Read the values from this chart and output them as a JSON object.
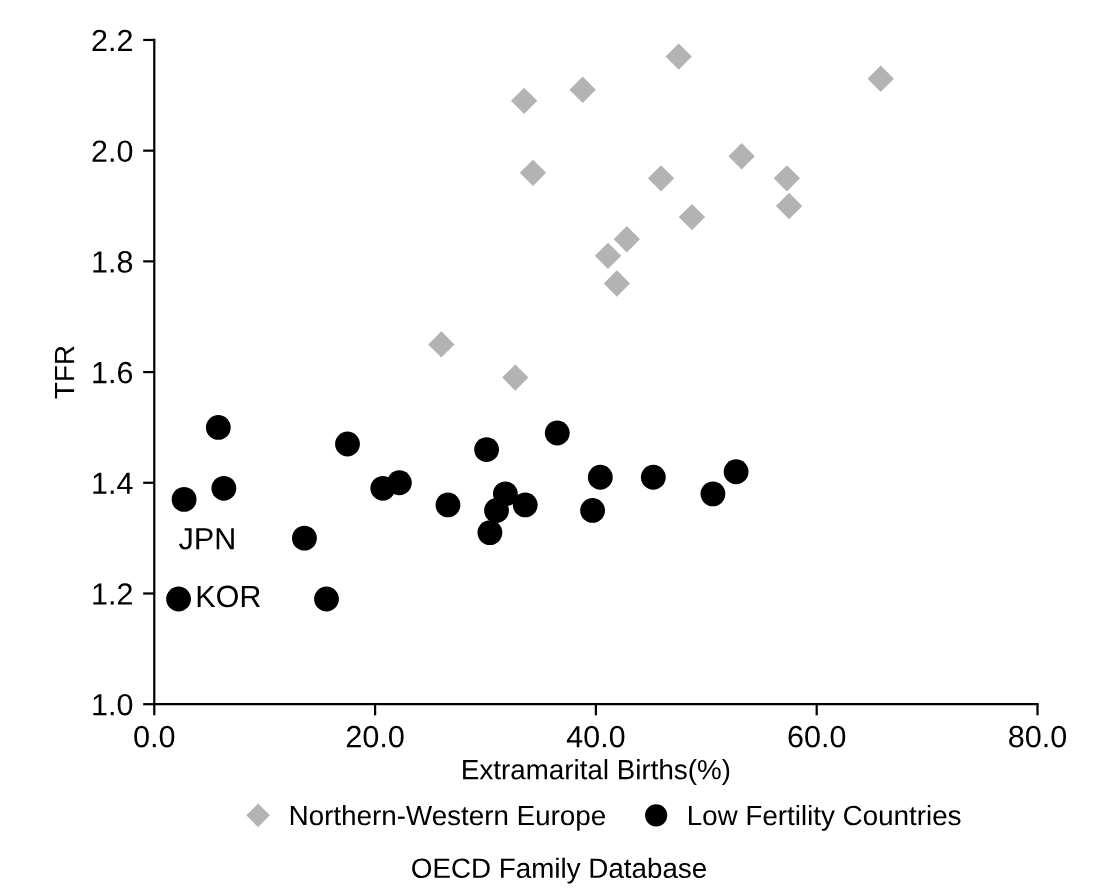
{
  "chart_data": {
    "type": "scatter",
    "xlabel": "Extramarital Births(%)",
    "ylabel": "TFR",
    "series": [
      {
        "name": "Northern-Western Europe",
        "color": "#b3b3b3",
        "marker": "diamond",
        "x": [
          26.0,
          32.7,
          34.3,
          41.1,
          41.9,
          42.8,
          45.9,
          48.7,
          53.2,
          57.3,
          57.5,
          33.5,
          38.8,
          47.5,
          65.8
        ],
        "values": [
          1.65,
          1.59,
          1.96,
          1.81,
          1.76,
          1.84,
          1.95,
          1.88,
          1.99,
          1.95,
          1.9,
          2.09,
          2.11,
          2.17,
          2.13
        ]
      },
      {
        "name": "Low Fertility Countries",
        "color": "#000000",
        "marker": "circle",
        "x": [
          2.7,
          5.8,
          6.3,
          2.2,
          13.6,
          15.6,
          17.5,
          20.7,
          22.2,
          26.6,
          30.1,
          30.4,
          31.0,
          31.8,
          33.6,
          36.5,
          40.4,
          39.7,
          45.2,
          50.6,
          52.7
        ],
        "values": [
          1.37,
          1.5,
          1.39,
          1.19,
          1.3,
          1.19,
          1.47,
          1.39,
          1.4,
          1.36,
          1.46,
          1.31,
          1.35,
          1.38,
          1.36,
          1.49,
          1.41,
          1.35,
          1.41,
          1.38,
          1.42
        ]
      }
    ],
    "xlim": [
      0,
      80
    ],
    "ylim": [
      1.0,
      2.2
    ],
    "xticks": [
      {
        "value": 0,
        "label": "0.0"
      },
      {
        "value": 20,
        "label": "20.0"
      },
      {
        "value": 40,
        "label": "40.0"
      },
      {
        "value": 60,
        "label": "60.0"
      },
      {
        "value": 80,
        "label": "80.0"
      }
    ],
    "yticks": [
      {
        "value": 1.0,
        "label": "1.0"
      },
      {
        "value": 1.2,
        "label": "1.2"
      },
      {
        "value": 1.4,
        "label": "1.4"
      },
      {
        "value": 1.6,
        "label": "1.6"
      },
      {
        "value": 1.8,
        "label": "1.8"
      },
      {
        "value": 2.0,
        "label": "2.0"
      },
      {
        "value": 2.2,
        "label": "2.2"
      }
    ],
    "annotations": [
      {
        "text": "JPN",
        "x": 2.7,
        "y": 1.37
      },
      {
        "text": "KOR",
        "x": 2.2,
        "y": 1.19
      },
      "OECD Family Database"
    ],
    "legend": "bottom",
    "grid": false
  }
}
